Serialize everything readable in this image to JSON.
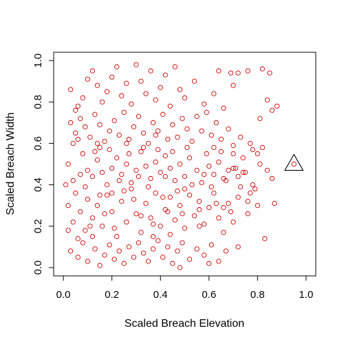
{
  "chart_data": {
    "type": "scatter",
    "title": "",
    "xlabel": "Scaled Breach Elevation",
    "ylabel": "Scaled Breach Width",
    "xlim": [
      -0.04,
      1.04
    ],
    "ylim": [
      -0.04,
      1.04
    ],
    "xticks": [
      "0.0",
      "0.2",
      "0.4",
      "0.6",
      "0.8",
      "1.0"
    ],
    "yticks": [
      "0.0",
      "0.2",
      "0.4",
      "0.6",
      "0.8",
      "1.0"
    ],
    "grid": false,
    "legend": "none",
    "point_color": "#cc0000",
    "marker_color": "#000000",
    "series": [
      {
        "marker": "circle",
        "points": [
          [
            0.02,
            0.5
          ],
          [
            0.04,
            0.42
          ],
          [
            0.03,
            0.7
          ],
          [
            0.05,
            0.76
          ],
          [
            0.06,
            0.62
          ],
          [
            0.08,
            0.55
          ],
          [
            0.1,
            0.47
          ],
          [
            0.12,
            0.44
          ],
          [
            0.14,
            0.52
          ],
          [
            0.15,
            0.58
          ],
          [
            0.16,
            0.46
          ],
          [
            0.18,
            0.4
          ],
          [
            0.2,
            0.48
          ],
          [
            0.22,
            0.53
          ],
          [
            0.24,
            0.45
          ],
          [
            0.26,
            0.5
          ],
          [
            0.28,
            0.41
          ],
          [
            0.3,
            0.47
          ],
          [
            0.32,
            0.56
          ],
          [
            0.34,
            0.49
          ],
          [
            0.36,
            0.43
          ],
          [
            0.38,
            0.51
          ],
          [
            0.4,
            0.46
          ],
          [
            0.42,
            0.54
          ],
          [
            0.44,
            0.48
          ],
          [
            0.46,
            0.42
          ],
          [
            0.48,
            0.5
          ],
          [
            0.5,
            0.44
          ],
          [
            0.52,
            0.53
          ],
          [
            0.55,
            0.47
          ],
          [
            0.57,
            0.41
          ],
          [
            0.6,
            0.49
          ],
          [
            0.62,
            0.45
          ],
          [
            0.64,
            0.51
          ],
          [
            0.66,
            0.43
          ],
          [
            0.68,
            0.47
          ],
          [
            0.7,
            0.48
          ],
          [
            0.72,
            0.44
          ],
          [
            0.75,
            0.46
          ],
          [
            0.78,
            0.4
          ],
          [
            0.02,
            0.3
          ],
          [
            0.04,
            0.22
          ],
          [
            0.05,
            0.36
          ],
          [
            0.07,
            0.27
          ],
          [
            0.09,
            0.18
          ],
          [
            0.1,
            0.33
          ],
          [
            0.12,
            0.24
          ],
          [
            0.14,
            0.3
          ],
          [
            0.16,
            0.2
          ],
          [
            0.18,
            0.35
          ],
          [
            0.2,
            0.27
          ],
          [
            0.22,
            0.15
          ],
          [
            0.24,
            0.32
          ],
          [
            0.26,
            0.22
          ],
          [
            0.28,
            0.38
          ],
          [
            0.3,
            0.26
          ],
          [
            0.32,
            0.17
          ],
          [
            0.34,
            0.31
          ],
          [
            0.36,
            0.24
          ],
          [
            0.38,
            0.36
          ],
          [
            0.4,
            0.2
          ],
          [
            0.42,
            0.28
          ],
          [
            0.44,
            0.34
          ],
          [
            0.46,
            0.23
          ],
          [
            0.48,
            0.3
          ],
          [
            0.5,
            0.19
          ],
          [
            0.52,
            0.35
          ],
          [
            0.54,
            0.25
          ],
          [
            0.56,
            0.32
          ],
          [
            0.58,
            0.21
          ],
          [
            0.6,
            0.29
          ],
          [
            0.62,
            0.36
          ],
          [
            0.64,
            0.24
          ],
          [
            0.66,
            0.17
          ],
          [
            0.68,
            0.31
          ],
          [
            0.7,
            0.22
          ],
          [
            0.72,
            0.34
          ],
          [
            0.76,
            0.26
          ],
          [
            0.8,
            0.3
          ],
          [
            0.83,
            0.14
          ],
          [
            0.03,
            0.08
          ],
          [
            0.06,
            0.05
          ],
          [
            0.08,
            0.12
          ],
          [
            0.1,
            0.03
          ],
          [
            0.13,
            0.09
          ],
          [
            0.15,
            0.01
          ],
          [
            0.17,
            0.06
          ],
          [
            0.19,
            0.11
          ],
          [
            0.21,
            0.04
          ],
          [
            0.23,
            0.08
          ],
          [
            0.25,
            0.02
          ],
          [
            0.27,
            0.1
          ],
          [
            0.29,
            0.05
          ],
          [
            0.31,
            0.12
          ],
          [
            0.33,
            0.07
          ],
          [
            0.35,
            0.03
          ],
          [
            0.37,
            0.09
          ],
          [
            0.39,
            0.13
          ],
          [
            0.41,
            0.05
          ],
          [
            0.43,
            0.1
          ],
          [
            0.45,
            0.02
          ],
          [
            0.47,
            0.08
          ],
          [
            0.49,
            0.12
          ],
          [
            0.52,
            0.04
          ],
          [
            0.55,
            0.09
          ],
          [
            0.58,
            0.06
          ],
          [
            0.61,
            0.11
          ],
          [
            0.64,
            0.03
          ],
          [
            0.67,
            0.08
          ],
          [
            0.72,
            0.1
          ],
          [
            0.03,
            0.86
          ],
          [
            0.06,
            0.78
          ],
          [
            0.08,
            0.82
          ],
          [
            0.1,
            0.91
          ],
          [
            0.12,
            0.95
          ],
          [
            0.14,
            0.88
          ],
          [
            0.16,
            0.8
          ],
          [
            0.18,
            0.85
          ],
          [
            0.2,
            0.92
          ],
          [
            0.22,
            0.97
          ],
          [
            0.24,
            0.83
          ],
          [
            0.26,
            0.89
          ],
          [
            0.28,
            0.79
          ],
          [
            0.3,
            0.98
          ],
          [
            0.32,
            0.9
          ],
          [
            0.34,
            0.84
          ],
          [
            0.36,
            0.95
          ],
          [
            0.38,
            0.81
          ],
          [
            0.4,
            0.87
          ],
          [
            0.42,
            0.93
          ],
          [
            0.44,
            0.78
          ],
          [
            0.46,
            0.97
          ],
          [
            0.48,
            0.86
          ],
          [
            0.5,
            0.82
          ],
          [
            0.54,
            0.9
          ],
          [
            0.58,
            0.79
          ],
          [
            0.62,
            0.84
          ],
          [
            0.66,
            0.77
          ],
          [
            0.7,
            0.88
          ],
          [
            0.72,
            0.94
          ],
          [
            0.76,
            0.95
          ],
          [
            0.82,
            0.96
          ],
          [
            0.85,
            0.94
          ],
          [
            0.84,
            0.81
          ],
          [
            0.86,
            0.76
          ],
          [
            0.88,
            0.78
          ],
          [
            0.81,
            0.72
          ],
          [
            0.77,
            0.6
          ],
          [
            0.82,
            0.58
          ],
          [
            0.74,
            0.53
          ],
          [
            0.05,
            0.65
          ],
          [
            0.07,
            0.72
          ],
          [
            0.09,
            0.68
          ],
          [
            0.11,
            0.63
          ],
          [
            0.13,
            0.74
          ],
          [
            0.15,
            0.69
          ],
          [
            0.17,
            0.61
          ],
          [
            0.19,
            0.66
          ],
          [
            0.21,
            0.71
          ],
          [
            0.23,
            0.64
          ],
          [
            0.25,
            0.75
          ],
          [
            0.27,
            0.62
          ],
          [
            0.29,
            0.68
          ],
          [
            0.31,
            0.73
          ],
          [
            0.33,
            0.65
          ],
          [
            0.35,
            0.6
          ],
          [
            0.37,
            0.7
          ],
          [
            0.39,
            0.66
          ],
          [
            0.41,
            0.74
          ],
          [
            0.43,
            0.62
          ],
          [
            0.45,
            0.69
          ],
          [
            0.47,
            0.63
          ],
          [
            0.49,
            0.72
          ],
          [
            0.51,
            0.67
          ],
          [
            0.53,
            0.61
          ],
          [
            0.55,
            0.73
          ],
          [
            0.57,
            0.66
          ],
          [
            0.59,
            0.75
          ],
          [
            0.61,
            0.64
          ],
          [
            0.63,
            0.7
          ],
          [
            0.65,
            0.62
          ],
          [
            0.68,
            0.67
          ],
          [
            0.7,
            0.59
          ],
          [
            0.73,
            0.63
          ],
          [
            0.78,
            0.57
          ],
          [
            0.8,
            0.55
          ],
          [
            0.84,
            0.47
          ],
          [
            0.86,
            0.43
          ],
          [
            0.79,
            0.38
          ],
          [
            0.77,
            0.36
          ],
          [
            0.01,
            0.4
          ],
          [
            0.02,
            0.18
          ],
          [
            0.04,
            0.6
          ],
          [
            0.06,
            0.14
          ],
          [
            0.07,
            0.45
          ],
          [
            0.09,
            0.39
          ],
          [
            0.11,
            0.2
          ],
          [
            0.13,
            0.56
          ],
          [
            0.15,
            0.35
          ],
          [
            0.17,
            0.26
          ],
          [
            0.19,
            0.57
          ],
          [
            0.21,
            0.19
          ],
          [
            0.23,
            0.42
          ],
          [
            0.25,
            0.37
          ],
          [
            0.27,
            0.55
          ],
          [
            0.29,
            0.33
          ],
          [
            0.31,
            0.44
          ],
          [
            0.33,
            0.58
          ],
          [
            0.35,
            0.39
          ],
          [
            0.37,
            0.21
          ],
          [
            0.39,
            0.57
          ],
          [
            0.41,
            0.34
          ],
          [
            0.43,
            0.27
          ],
          [
            0.45,
            0.56
          ],
          [
            0.47,
            0.37
          ],
          [
            0.49,
            0.26
          ],
          [
            0.51,
            0.58
          ],
          [
            0.53,
            0.4
          ],
          [
            0.56,
            0.28
          ],
          [
            0.59,
            0.55
          ],
          [
            0.61,
            0.39
          ],
          [
            0.63,
            0.31
          ],
          [
            0.65,
            0.56
          ],
          [
            0.67,
            0.42
          ],
          [
            0.69,
            0.27
          ],
          [
            0.71,
            0.48
          ],
          [
            0.73,
            0.39
          ],
          [
            0.6,
            0.02
          ],
          [
            0.48,
            0.0
          ],
          [
            0.37,
            0.15
          ],
          [
            0.12,
            0.15
          ],
          [
            0.14,
            0.6
          ],
          [
            0.2,
            0.36
          ],
          [
            0.26,
            0.6
          ],
          [
            0.32,
            0.25
          ],
          [
            0.38,
            0.64
          ],
          [
            0.42,
            0.44
          ],
          [
            0.44,
            0.16
          ],
          [
            0.5,
            0.38
          ],
          [
            0.56,
            0.2
          ],
          [
            0.58,
            0.45
          ],
          [
            0.62,
            0.58
          ],
          [
            0.66,
            0.29
          ],
          [
            0.7,
            0.55
          ],
          [
            0.74,
            0.46
          ],
          [
            0.76,
            0.32
          ],
          [
            0.81,
            0.5
          ],
          [
            0.87,
            0.31
          ],
          [
            0.64,
            0.95
          ],
          [
            0.69,
            0.94
          ]
        ]
      },
      {
        "marker": "triangle",
        "points": [
          [
            0.95,
            0.5
          ]
        ]
      }
    ]
  }
}
